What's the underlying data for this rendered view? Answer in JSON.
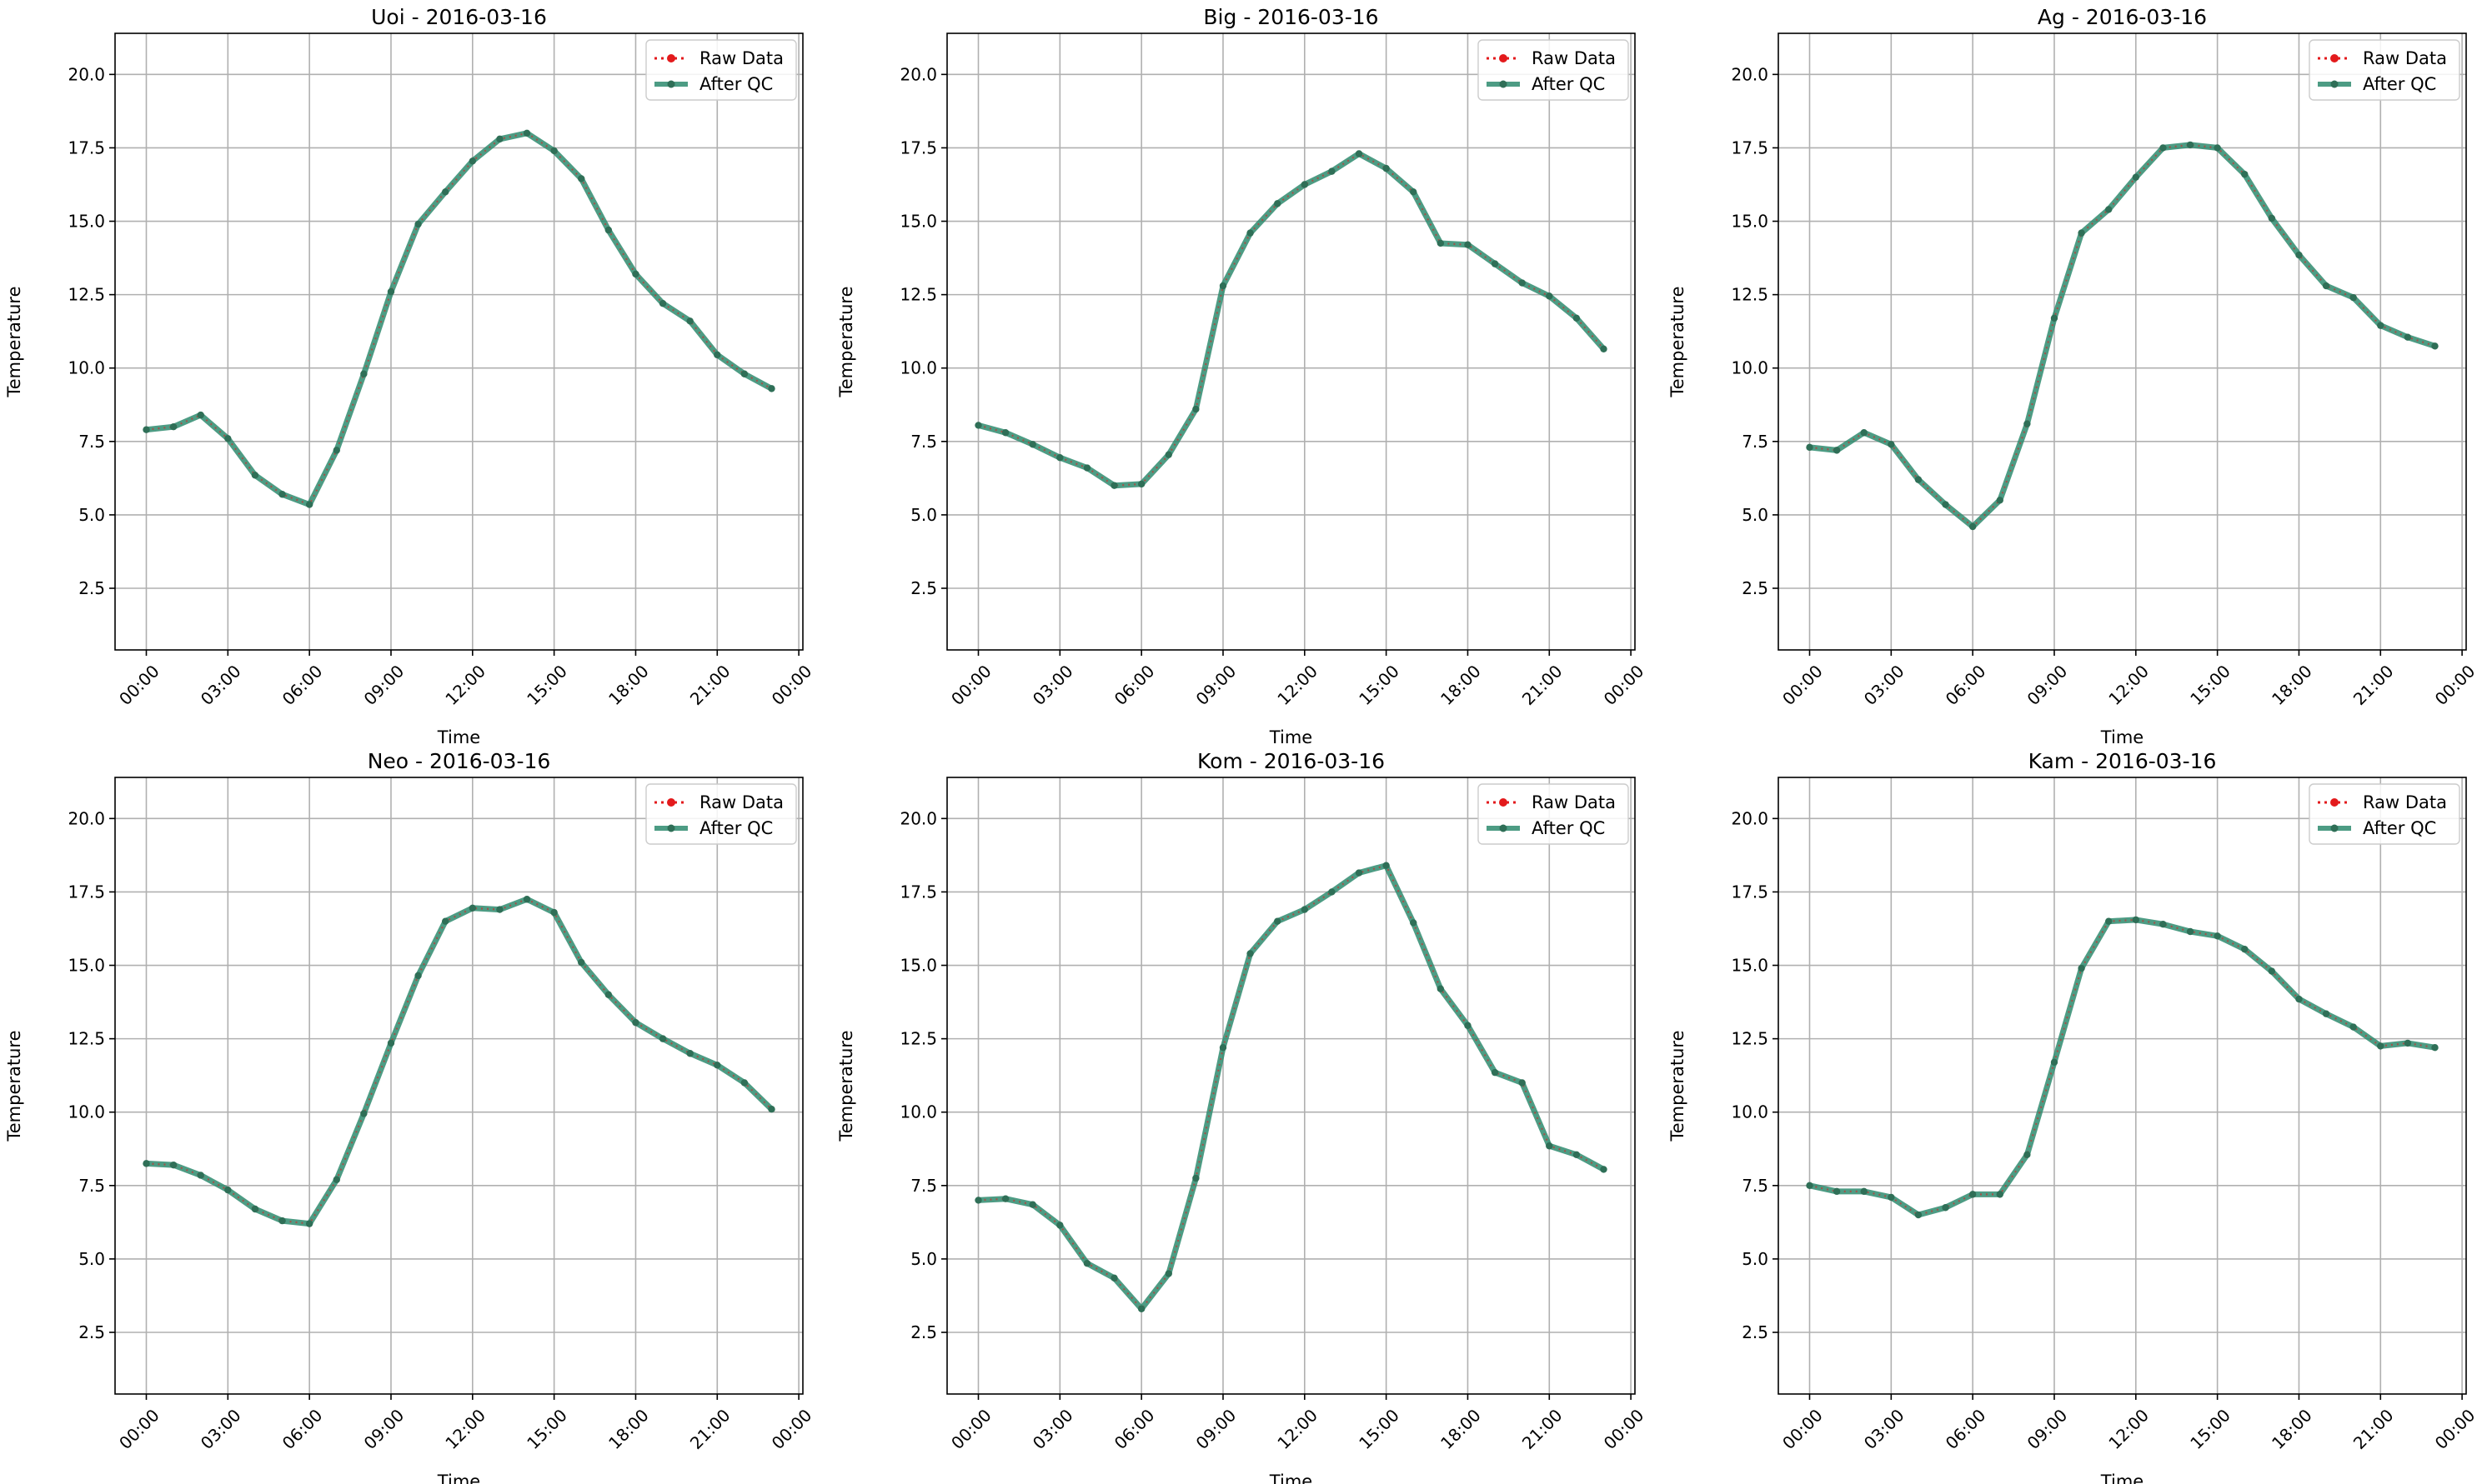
{
  "figure": {
    "background": "#ffffff"
  },
  "colors": {
    "raw": "#e31a1c",
    "qc": "#2e8b6e",
    "qc_marker": "#2f6f57",
    "grid": "#b0b0b0",
    "axis": "#000000"
  },
  "legend": {
    "raw_label": "Raw Data",
    "qc_label": "After QC",
    "placement": "top-right"
  },
  "chart_data": [
    {
      "type": "line",
      "title": "Uoi - 2016-03-16",
      "xlabel": "Time",
      "ylabel": "Temperature",
      "ylim": [
        0.4,
        21.4
      ],
      "yticks": [
        2.5,
        5.0,
        7.5,
        10.0,
        12.5,
        15.0,
        17.5,
        20.0
      ],
      "xlim": [
        -1.15,
        24.15
      ],
      "xticks": [
        0,
        3,
        6,
        9,
        12,
        15,
        18,
        21,
        24
      ],
      "xtick_labels": [
        "00:00",
        "03:00",
        "06:00",
        "09:00",
        "12:00",
        "15:00",
        "18:00",
        "21:00",
        "00:00"
      ],
      "grid": true,
      "x": [
        0,
        1,
        2,
        3,
        4,
        5,
        6,
        7,
        8,
        9,
        10,
        11,
        12,
        13,
        14,
        15,
        16,
        17,
        18,
        19,
        20,
        21,
        22,
        23
      ],
      "series": [
        {
          "name": "Raw Data",
          "values": [
            7.9,
            8.0,
            8.4,
            7.6,
            6.35,
            5.7,
            5.35,
            7.2,
            9.8,
            12.6,
            14.9,
            16.0,
            17.05,
            17.8,
            18.0,
            17.4,
            16.45,
            14.7,
            13.2,
            12.2,
            11.6,
            10.45,
            9.8,
            9.3
          ]
        },
        {
          "name": "After QC",
          "values": [
            7.9,
            8.0,
            8.4,
            7.6,
            6.35,
            5.7,
            5.35,
            7.2,
            9.8,
            12.6,
            14.9,
            16.0,
            17.05,
            17.8,
            18.0,
            17.4,
            16.45,
            14.7,
            13.2,
            12.2,
            11.6,
            10.45,
            9.8,
            9.3
          ]
        }
      ]
    },
    {
      "type": "line",
      "title": "Big - 2016-03-16",
      "xlabel": "Time",
      "ylabel": "Temperature",
      "ylim": [
        0.4,
        21.4
      ],
      "yticks": [
        2.5,
        5.0,
        7.5,
        10.0,
        12.5,
        15.0,
        17.5,
        20.0
      ],
      "xlim": [
        -1.15,
        24.15
      ],
      "xticks": [
        0,
        3,
        6,
        9,
        12,
        15,
        18,
        21,
        24
      ],
      "xtick_labels": [
        "00:00",
        "03:00",
        "06:00",
        "09:00",
        "12:00",
        "15:00",
        "18:00",
        "21:00",
        "00:00"
      ],
      "grid": true,
      "x": [
        0,
        1,
        2,
        3,
        4,
        5,
        6,
        7,
        8,
        9,
        10,
        11,
        12,
        13,
        14,
        15,
        16,
        17,
        18,
        19,
        20,
        21,
        22,
        23
      ],
      "series": [
        {
          "name": "Raw Data",
          "values": [
            8.05,
            7.8,
            7.4,
            6.95,
            6.6,
            6.0,
            6.05,
            7.05,
            8.6,
            12.8,
            14.6,
            15.6,
            16.25,
            16.7,
            17.3,
            16.8,
            16.0,
            14.25,
            14.2,
            13.55,
            12.9,
            12.45,
            11.7,
            10.65
          ]
        },
        {
          "name": "After QC",
          "values": [
            8.05,
            7.8,
            7.4,
            6.95,
            6.6,
            6.0,
            6.05,
            7.05,
            8.6,
            12.8,
            14.6,
            15.6,
            16.25,
            16.7,
            17.3,
            16.8,
            16.0,
            14.25,
            14.2,
            13.55,
            12.9,
            12.45,
            11.7,
            10.65
          ]
        }
      ]
    },
    {
      "type": "line",
      "title": "Ag - 2016-03-16",
      "xlabel": "Time",
      "ylabel": "Temperature",
      "ylim": [
        0.4,
        21.4
      ],
      "yticks": [
        2.5,
        5.0,
        7.5,
        10.0,
        12.5,
        15.0,
        17.5,
        20.0
      ],
      "xlim": [
        -1.15,
        24.15
      ],
      "xticks": [
        0,
        3,
        6,
        9,
        12,
        15,
        18,
        21,
        24
      ],
      "xtick_labels": [
        "00:00",
        "03:00",
        "06:00",
        "09:00",
        "12:00",
        "15:00",
        "18:00",
        "21:00",
        "00:00"
      ],
      "grid": true,
      "x": [
        0,
        1,
        2,
        3,
        4,
        5,
        6,
        7,
        8,
        9,
        10,
        11,
        12,
        13,
        14,
        15,
        16,
        17,
        18,
        19,
        20,
        21,
        22,
        23
      ],
      "series": [
        {
          "name": "Raw Data",
          "values": [
            7.3,
            7.2,
            7.8,
            7.4,
            6.2,
            5.35,
            4.6,
            5.5,
            8.1,
            11.7,
            14.6,
            15.4,
            16.5,
            17.5,
            17.6,
            17.5,
            16.6,
            15.1,
            13.85,
            12.8,
            12.4,
            11.45,
            11.05,
            10.75
          ]
        },
        {
          "name": "After QC",
          "values": [
            7.3,
            7.2,
            7.8,
            7.4,
            6.2,
            5.35,
            4.6,
            5.5,
            8.1,
            11.7,
            14.6,
            15.4,
            16.5,
            17.5,
            17.6,
            17.5,
            16.6,
            15.1,
            13.85,
            12.8,
            12.4,
            11.45,
            11.05,
            10.75
          ]
        }
      ]
    },
    {
      "type": "line",
      "title": "Neo - 2016-03-16",
      "xlabel": "Time",
      "ylabel": "Temperature",
      "ylim": [
        0.4,
        21.4
      ],
      "yticks": [
        2.5,
        5.0,
        7.5,
        10.0,
        12.5,
        15.0,
        17.5,
        20.0
      ],
      "xlim": [
        -1.15,
        24.15
      ],
      "xticks": [
        0,
        3,
        6,
        9,
        12,
        15,
        18,
        21,
        24
      ],
      "xtick_labels": [
        "00:00",
        "03:00",
        "06:00",
        "09:00",
        "12:00",
        "15:00",
        "18:00",
        "21:00",
        "00:00"
      ],
      "grid": true,
      "x": [
        0,
        1,
        2,
        3,
        4,
        5,
        6,
        7,
        8,
        9,
        10,
        11,
        12,
        13,
        14,
        15,
        16,
        17,
        18,
        19,
        20,
        21,
        22,
        23
      ],
      "series": [
        {
          "name": "Raw Data",
          "values": [
            8.25,
            8.2,
            7.85,
            7.35,
            6.7,
            6.3,
            6.2,
            7.7,
            9.95,
            12.35,
            14.65,
            16.5,
            16.95,
            16.9,
            17.25,
            16.8,
            15.1,
            14.0,
            13.05,
            12.5,
            12.0,
            11.6,
            11.0,
            10.1
          ]
        },
        {
          "name": "After QC",
          "values": [
            8.25,
            8.2,
            7.85,
            7.35,
            6.7,
            6.3,
            6.2,
            7.7,
            9.95,
            12.35,
            14.65,
            16.5,
            16.95,
            16.9,
            17.25,
            16.8,
            15.1,
            14.0,
            13.05,
            12.5,
            12.0,
            11.6,
            11.0,
            10.1
          ]
        }
      ]
    },
    {
      "type": "line",
      "title": "Kom - 2016-03-16",
      "xlabel": "Time",
      "ylabel": "Temperature",
      "ylim": [
        0.4,
        21.4
      ],
      "yticks": [
        2.5,
        5.0,
        7.5,
        10.0,
        12.5,
        15.0,
        17.5,
        20.0
      ],
      "xlim": [
        -1.15,
        24.15
      ],
      "xticks": [
        0,
        3,
        6,
        9,
        12,
        15,
        18,
        21,
        24
      ],
      "xtick_labels": [
        "00:00",
        "03:00",
        "06:00",
        "09:00",
        "12:00",
        "15:00",
        "18:00",
        "21:00",
        "00:00"
      ],
      "grid": true,
      "x": [
        0,
        1,
        2,
        3,
        4,
        5,
        6,
        7,
        8,
        9,
        10,
        11,
        12,
        13,
        14,
        15,
        16,
        17,
        18,
        19,
        20,
        21,
        22,
        23
      ],
      "series": [
        {
          "name": "Raw Data",
          "values": [
            7.0,
            7.05,
            6.85,
            6.15,
            4.85,
            4.35,
            3.3,
            4.5,
            7.75,
            12.2,
            15.4,
            16.5,
            16.9,
            17.5,
            18.15,
            18.4,
            16.45,
            14.2,
            12.95,
            11.35,
            11.0,
            8.85,
            8.55,
            8.05
          ]
        },
        {
          "name": "After QC",
          "values": [
            7.0,
            7.05,
            6.85,
            6.15,
            4.85,
            4.35,
            3.3,
            4.5,
            7.75,
            12.2,
            15.4,
            16.5,
            16.9,
            17.5,
            18.15,
            18.4,
            16.45,
            14.2,
            12.95,
            11.35,
            11.0,
            8.85,
            8.55,
            8.05
          ]
        }
      ]
    },
    {
      "type": "line",
      "title": "Kam - 2016-03-16",
      "xlabel": "Time",
      "ylabel": "Temperature",
      "ylim": [
        0.4,
        21.4
      ],
      "yticks": [
        2.5,
        5.0,
        7.5,
        10.0,
        12.5,
        15.0,
        17.5,
        20.0
      ],
      "xlim": [
        -1.15,
        24.15
      ],
      "xticks": [
        0,
        3,
        6,
        9,
        12,
        15,
        18,
        21,
        24
      ],
      "xtick_labels": [
        "00:00",
        "03:00",
        "06:00",
        "09:00",
        "12:00",
        "15:00",
        "18:00",
        "21:00",
        "00:00"
      ],
      "grid": true,
      "x": [
        0,
        1,
        2,
        3,
        4,
        5,
        6,
        7,
        8,
        9,
        10,
        11,
        12,
        13,
        14,
        15,
        16,
        17,
        18,
        19,
        20,
        21,
        22,
        23
      ],
      "series": [
        {
          "name": "Raw Data",
          "values": [
            7.5,
            7.3,
            7.3,
            7.1,
            6.5,
            6.75,
            7.2,
            7.2,
            8.55,
            11.7,
            14.9,
            16.5,
            16.55,
            16.4,
            16.15,
            16.0,
            15.55,
            14.8,
            13.85,
            13.35,
            12.9,
            12.25,
            12.35,
            12.2
          ]
        },
        {
          "name": "After QC",
          "values": [
            7.5,
            7.3,
            7.3,
            7.1,
            6.5,
            6.75,
            7.2,
            7.2,
            8.55,
            11.7,
            14.9,
            16.5,
            16.55,
            16.4,
            16.15,
            16.0,
            15.55,
            14.8,
            13.85,
            13.35,
            12.9,
            12.25,
            12.35,
            12.2
          ]
        }
      ]
    }
  ]
}
